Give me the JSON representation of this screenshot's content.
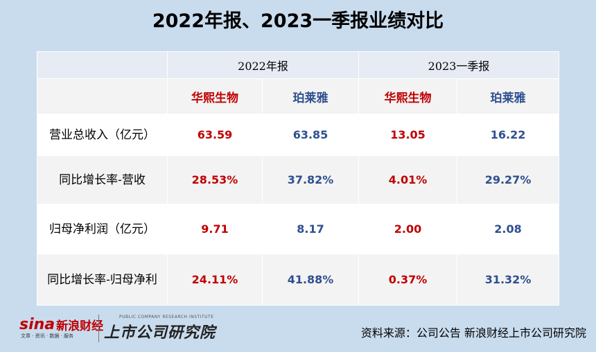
{
  "title": "2022年报、2023一季报业绩对比",
  "periods": [
    "2022年报",
    "2023一季报"
  ],
  "companies": [
    "华熙生物",
    "珀莱雅",
    "华熙生物",
    "珀莱雅"
  ],
  "rows": [
    {
      "label": "营业总收入（亿元）",
      "values": [
        "63.59",
        "63.85",
        "13.05",
        "16.22"
      ]
    },
    {
      "label": "同比增长率-营收",
      "values": [
        "28.53%",
        "37.82%",
        "4.01%",
        "29.27%"
      ]
    },
    {
      "label": "归母净利润（亿元）",
      "values": [
        "9.71",
        "8.17",
        "2.00",
        "2.08"
      ]
    },
    {
      "label": "同比增长率-归母净利",
      "values": [
        "24.11%",
        "41.88%",
        "0.37%",
        "31.32%"
      ]
    }
  ],
  "footer": {
    "logo_sina": "sina",
    "logo_cn": "新浪财经",
    "logo_sub": "文章 · 资讯 · 数据 · 服务",
    "institute_en": "PUBLIC COMPANY RESEARCH INSTITUTE",
    "institute_cn": "上市公司研究院",
    "source": "资料来源：公司公告 新浪财经上市公司研究院"
  },
  "colors": {
    "huaxi": "#c00000",
    "proya": "#2f4f8f",
    "background": "#c9dcee"
  }
}
